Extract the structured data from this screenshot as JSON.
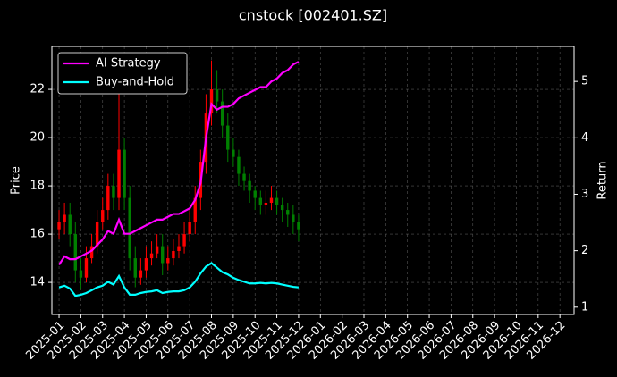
{
  "chart_data": {
    "type": "candlestick",
    "title": "cnstock [002401.SZ]",
    "ylabel": "Price",
    "y2label": "Return",
    "x": [
      0,
      0.25,
      0.5,
      0.75,
      1,
      1.25,
      1.5,
      1.75,
      2,
      2.25,
      2.5,
      2.75,
      3,
      3.25,
      3.5,
      3.75,
      4,
      4.25,
      4.5,
      4.75,
      5,
      5.25,
      5.5,
      5.75,
      6,
      6.25,
      6.5,
      6.75,
      7,
      7.25,
      7.5,
      7.75,
      8,
      8.25,
      8.5,
      8.75,
      9,
      9.25,
      9.5,
      9.75,
      10,
      10.25,
      10.5,
      10.75,
      11
    ],
    "open": [
      16.2,
      16.5,
      16.8,
      16.0,
      14.5,
      14.2,
      15.0,
      15.5,
      16.5,
      17.0,
      18.0,
      17.5,
      19.5,
      17.5,
      15.0,
      14.2,
      14.5,
      15.0,
      15.2,
      15.5,
      14.8,
      15.0,
      15.3,
      15.5,
      16.0,
      16.5,
      17.5,
      19.0,
      21.0,
      22.0,
      21.5,
      20.5,
      19.5,
      19.2,
      18.5,
      18.2,
      17.8,
      17.5,
      17.2,
      17.3,
      17.5,
      17.2,
      17.0,
      16.8,
      16.5
    ],
    "high": [
      17.0,
      17.3,
      17.3,
      16.5,
      15.0,
      15.5,
      16.0,
      17.0,
      17.5,
      18.5,
      18.5,
      22.0,
      20.0,
      18.0,
      15.5,
      15.0,
      15.5,
      15.7,
      16.0,
      16.0,
      15.5,
      15.8,
      16.0,
      16.5,
      17.0,
      18.0,
      19.5,
      21.8,
      23.2,
      22.8,
      22.0,
      21.0,
      20.0,
      19.5,
      18.8,
      18.5,
      18.0,
      17.8,
      17.8,
      18.0,
      17.8,
      17.5,
      17.3,
      17.2,
      16.8
    ],
    "low": [
      15.8,
      16.0,
      15.5,
      14.0,
      13.7,
      14.0,
      14.8,
      15.2,
      16.2,
      16.6,
      17.0,
      17.0,
      17.0,
      14.5,
      13.8,
      13.9,
      14.2,
      14.7,
      15.0,
      14.3,
      14.5,
      14.7,
      15.0,
      15.2,
      15.7,
      16.0,
      17.0,
      18.5,
      20.5,
      21.0,
      20.0,
      19.0,
      18.8,
      18.0,
      17.8,
      17.3,
      17.0,
      16.8,
      16.8,
      17.0,
      16.8,
      16.5,
      16.3,
      16.0,
      15.7
    ],
    "close": [
      16.5,
      16.8,
      16.0,
      14.5,
      14.2,
      15.0,
      15.5,
      16.5,
      17.0,
      18.0,
      17.5,
      19.5,
      17.5,
      15.0,
      14.2,
      14.5,
      15.0,
      15.2,
      15.5,
      14.8,
      15.0,
      15.3,
      15.5,
      16.0,
      16.5,
      17.5,
      19.0,
      21.0,
      22.0,
      21.5,
      20.5,
      19.5,
      19.2,
      18.5,
      18.2,
      17.8,
      17.5,
      17.2,
      17.3,
      17.5,
      17.2,
      17.0,
      16.8,
      16.5,
      16.2
    ],
    "up_color": "#ff0000",
    "down_color": "#008000",
    "series": [
      {
        "name": "AI Strategy",
        "color": "#ff00ff",
        "axis": "y2",
        "values": [
          1.75,
          1.9,
          1.85,
          1.85,
          1.9,
          1.95,
          2.0,
          2.1,
          2.2,
          2.35,
          2.3,
          2.55,
          2.3,
          2.3,
          2.35,
          2.4,
          2.45,
          2.5,
          2.55,
          2.55,
          2.6,
          2.65,
          2.65,
          2.7,
          2.75,
          2.9,
          3.2,
          4.0,
          4.6,
          4.5,
          4.55,
          4.55,
          4.6,
          4.7,
          4.75,
          4.8,
          4.85,
          4.9,
          4.9,
          5.0,
          5.05,
          5.15,
          5.2,
          5.3,
          5.35
        ]
      },
      {
        "name": "Buy-and-Hold",
        "color": "#00ffff",
        "axis": "y2",
        "values": [
          1.35,
          1.38,
          1.33,
          1.2,
          1.22,
          1.25,
          1.3,
          1.35,
          1.38,
          1.45,
          1.4,
          1.55,
          1.35,
          1.22,
          1.22,
          1.25,
          1.27,
          1.28,
          1.3,
          1.25,
          1.27,
          1.28,
          1.28,
          1.3,
          1.35,
          1.45,
          1.6,
          1.72,
          1.78,
          1.7,
          1.62,
          1.58,
          1.52,
          1.48,
          1.45,
          1.42,
          1.42,
          1.43,
          1.42,
          1.43,
          1.42,
          1.4,
          1.38,
          1.36,
          1.35
        ]
      }
    ],
    "xlim": [
      -0.33,
      23.65
    ],
    "ylim": [
      12.67,
      23.78
    ],
    "yticks": [
      14,
      16,
      18,
      20,
      22
    ],
    "y2lim": [
      0.87,
      5.62
    ],
    "y2ticks": [
      1,
      2,
      3,
      4,
      5
    ],
    "xticks": [
      {
        "value": 0,
        "label": "2025-01"
      },
      {
        "value": 1,
        "label": "2025-02"
      },
      {
        "value": 2,
        "label": "2025-03"
      },
      {
        "value": 3,
        "label": "2025-04"
      },
      {
        "value": 4,
        "label": "2025-05"
      },
      {
        "value": 5,
        "label": "2025-06"
      },
      {
        "value": 6,
        "label": "2025-07"
      },
      {
        "value": 7,
        "label": "2025-08"
      },
      {
        "value": 8,
        "label": "2025-09"
      },
      {
        "value": 9,
        "label": "2025-10"
      },
      {
        "value": 10,
        "label": "2025-11"
      },
      {
        "value": 11,
        "label": "2025-12"
      },
      {
        "value": 12,
        "label": "2026-01"
      },
      {
        "value": 13,
        "label": "2026-02"
      },
      {
        "value": 14,
        "label": "2026-03"
      },
      {
        "value": 15,
        "label": "2026-04"
      },
      {
        "value": 16,
        "label": "2026-05"
      },
      {
        "value": 17,
        "label": "2026-06"
      },
      {
        "value": 18,
        "label": "2026-07"
      },
      {
        "value": 19,
        "label": "2026-08"
      },
      {
        "value": 20,
        "label": "2026-09"
      },
      {
        "value": 21,
        "label": "2026-10"
      },
      {
        "value": 22,
        "label": "2026-11"
      },
      {
        "value": 23,
        "label": "2026-12"
      }
    ],
    "grid": true,
    "legend": "upper left"
  }
}
